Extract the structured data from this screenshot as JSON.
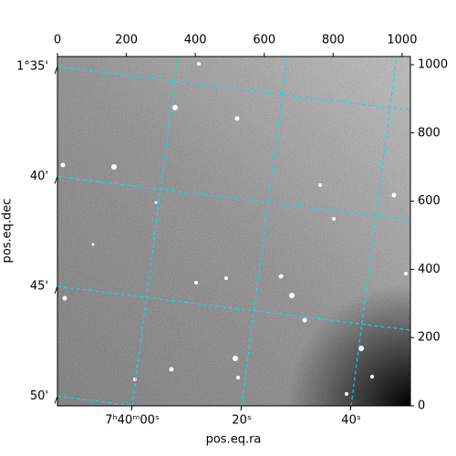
{
  "chart_data": {
    "type": "image",
    "xlabel": "pos.eq.ra",
    "ylabel": "pos.eq.dec",
    "xlim": [
      0,
      1024
    ],
    "xticks": [
      0,
      200,
      400,
      600,
      800,
      1000
    ],
    "ylim": [
      0,
      1024
    ],
    "yticks": [
      0,
      200,
      400,
      600,
      800,
      1000
    ],
    "ra_ticks": [
      "7ʰ40ᵐ00ˢ",
      "20ˢ",
      "40ˢ"
    ],
    "dec_ticks": [
      "1°35'",
      "40'",
      "45'",
      "50'"
    ],
    "grid_color": "#00e5e5"
  }
}
